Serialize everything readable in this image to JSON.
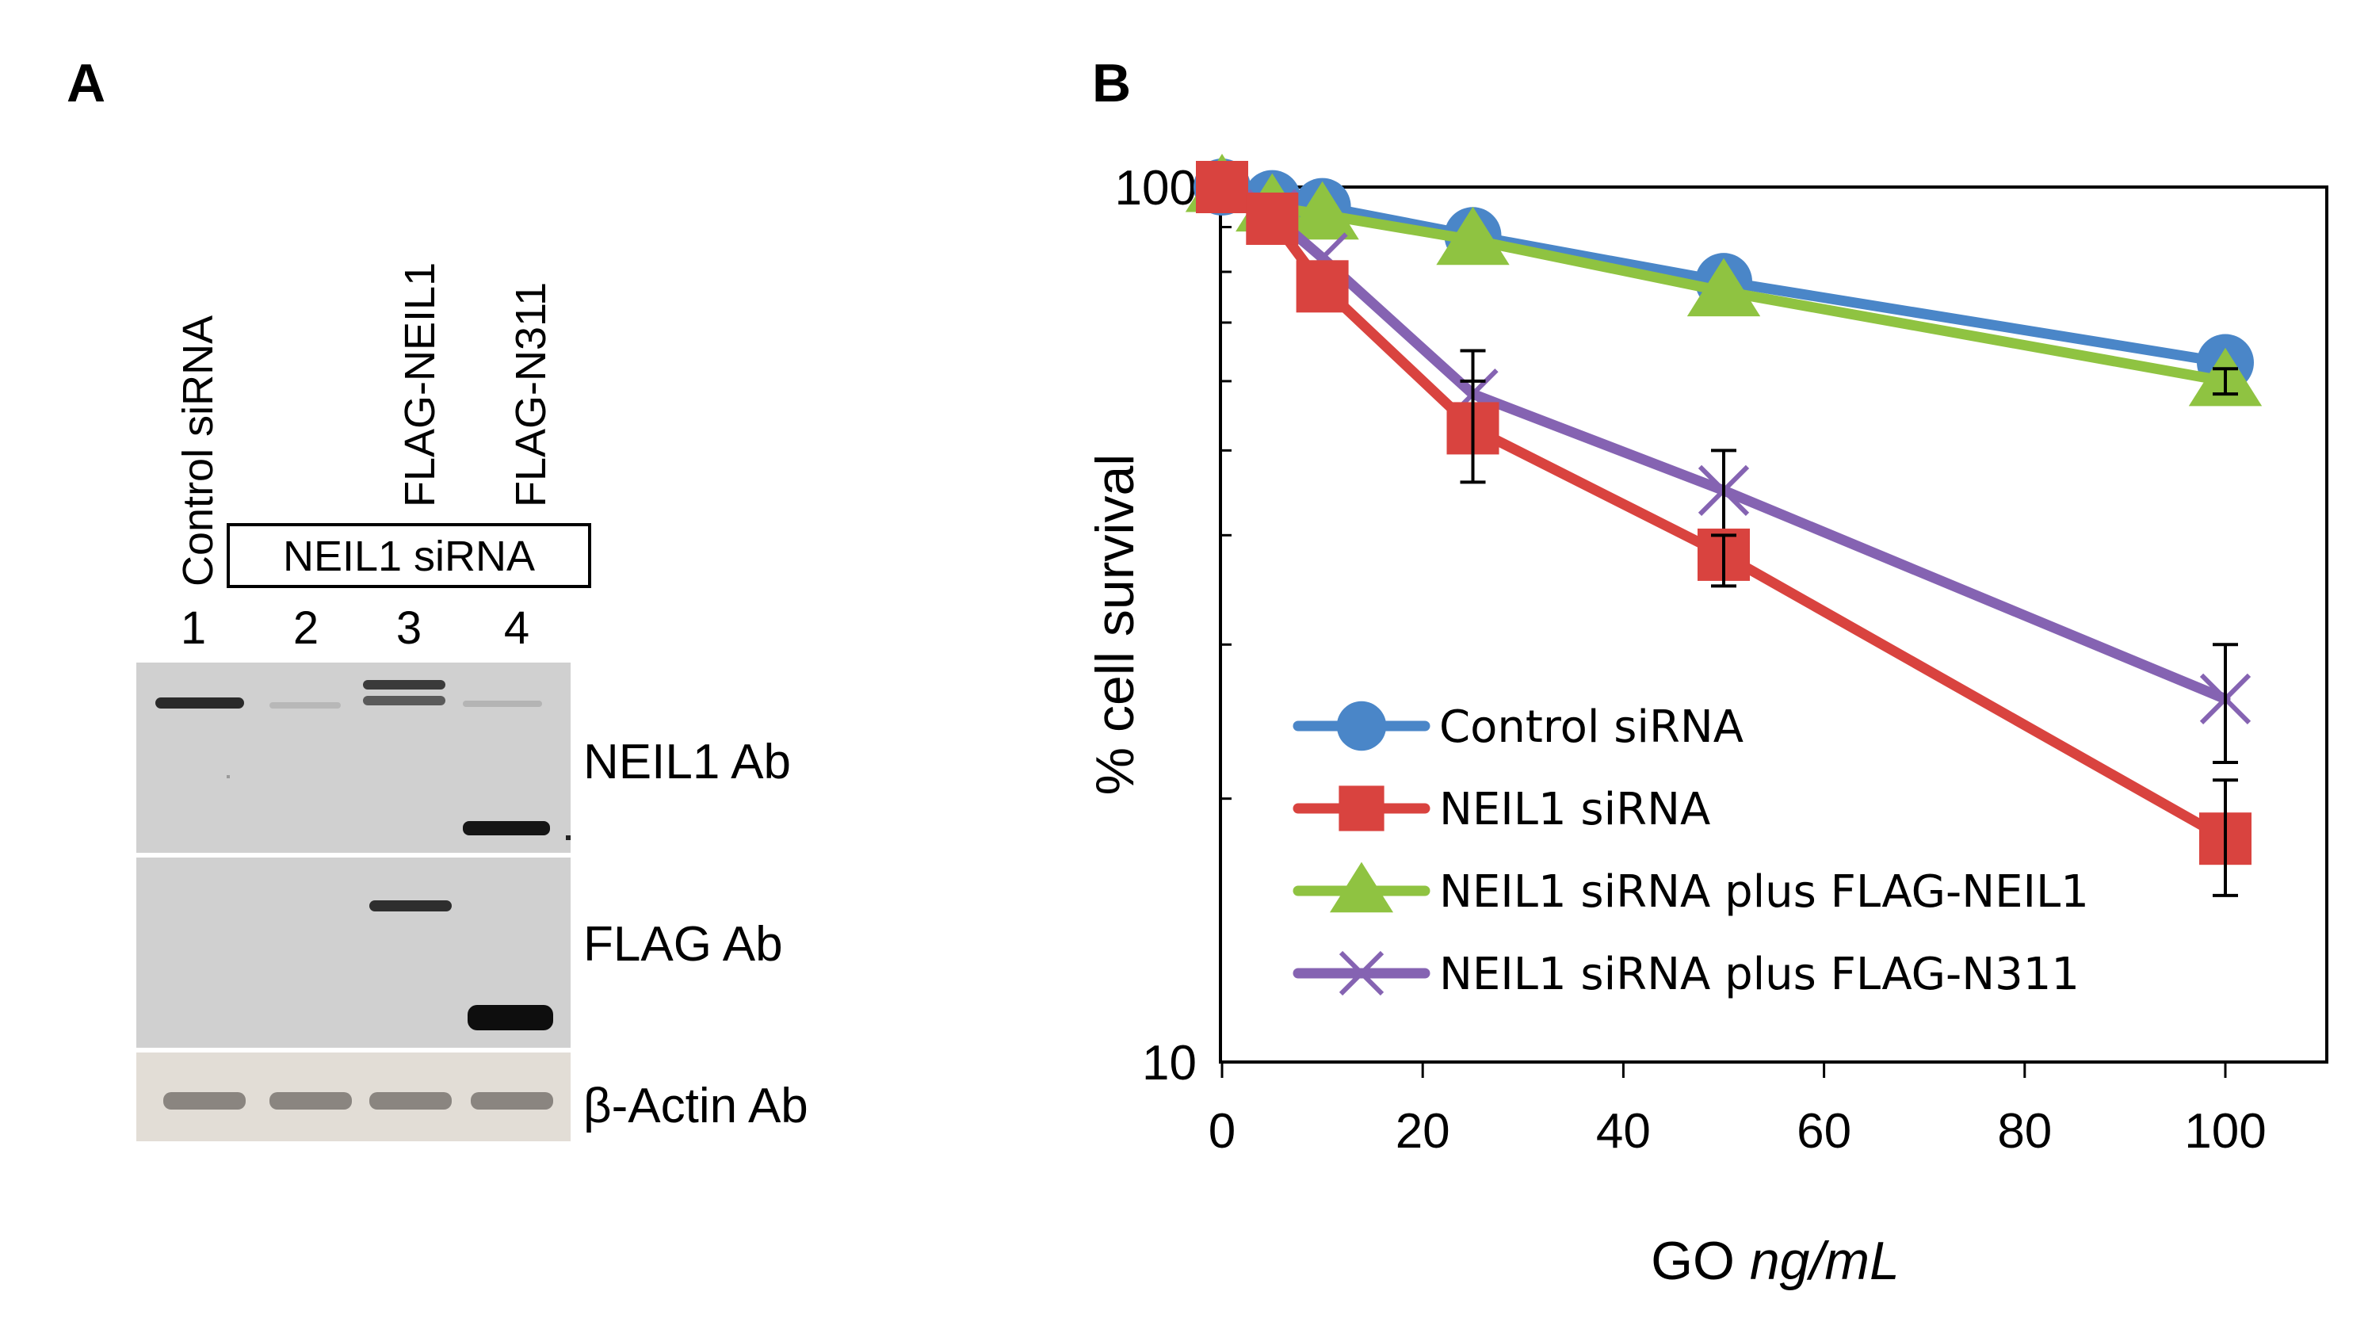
{
  "panel_a": {
    "letter": "A",
    "lane_labels": {
      "lane1": "Control siRNA",
      "lane3": "FLAG-NEIL1",
      "lane4": "FLAG-N311"
    },
    "bracket_label": "NEIL1 siRNA",
    "lane_numbers": [
      "1",
      "2",
      "3",
      "4"
    ],
    "blots": [
      {
        "antibody": "NEIL1 Ab"
      },
      {
        "antibody": "FLAG Ab"
      },
      {
        "antibody": "β-Actin Ab"
      }
    ]
  },
  "panel_b": {
    "letter": "B"
  },
  "chart_data": {
    "type": "line",
    "title": "",
    "xlabel_prefix": "GO",
    "xlabel_unit": "ng/mL",
    "ylabel": "% cell survival",
    "x_scale": "linear",
    "y_scale": "log",
    "xlim": [
      0,
      110
    ],
    "ylim": [
      10,
      100
    ],
    "x_ticks": [
      "0",
      "20",
      "40",
      "60",
      "80",
      "100"
    ],
    "x_tick_values": [
      0,
      20,
      40,
      60,
      80,
      100
    ],
    "y_ticks": [
      "10",
      "100"
    ],
    "y_tick_values": [
      10,
      100
    ],
    "x": [
      0,
      5,
      10,
      25,
      50,
      100
    ],
    "series": [
      {
        "name": "Control siRNA",
        "color": "#4a86c8",
        "marker": "circle",
        "values": [
          100,
          97,
          95,
          88,
          78,
          63
        ],
        "err_x": [],
        "err_lo": [],
        "err_hi": []
      },
      {
        "name": "NEIL1 siRNA",
        "color": "#d9433f",
        "marker": "square",
        "values": [
          100,
          92,
          77,
          53,
          38,
          18
        ],
        "err_x": [
          25,
          50,
          100
        ],
        "err_lo": [
          46,
          35,
          15.5
        ],
        "err_hi": [
          60,
          40,
          21
        ]
      },
      {
        "name": "NEIL1 siRNA plus FLAG-NEIL1",
        "color": "#8fc341",
        "marker": "triangle",
        "values": [
          100,
          95,
          93,
          87,
          76,
          60
        ],
        "err_x": [
          100
        ],
        "err_lo": [
          58
        ],
        "err_hi": [
          62
        ]
      },
      {
        "name": "NEIL1 siRNA plus FLAG-N311",
        "color": "#8563b2",
        "marker": "x",
        "values": [
          100,
          93,
          83,
          58,
          45,
          26
        ],
        "err_x": [
          25,
          50,
          100
        ],
        "err_lo": [
          50,
          40,
          22
        ],
        "err_hi": [
          65,
          50,
          30
        ]
      }
    ]
  }
}
